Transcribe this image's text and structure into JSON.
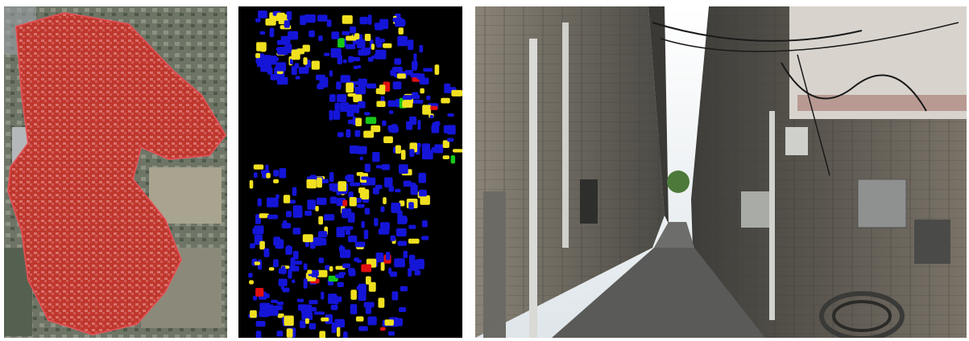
{
  "figure": {
    "panels": [
      {
        "id": "satellite",
        "kind": "aerial image with red overlay of building area"
      },
      {
        "id": "classification",
        "kind": "building classification map"
      },
      {
        "id": "street",
        "kind": "street-level photo of narrow alley"
      }
    ]
  },
  "colors": {
    "overlay_red": "#c8232c",
    "class_blue": "#1515d8",
    "class_yellow": "#f0e020",
    "class_green": "#18c818",
    "class_red": "#e01010",
    "background_black": "#000000"
  }
}
